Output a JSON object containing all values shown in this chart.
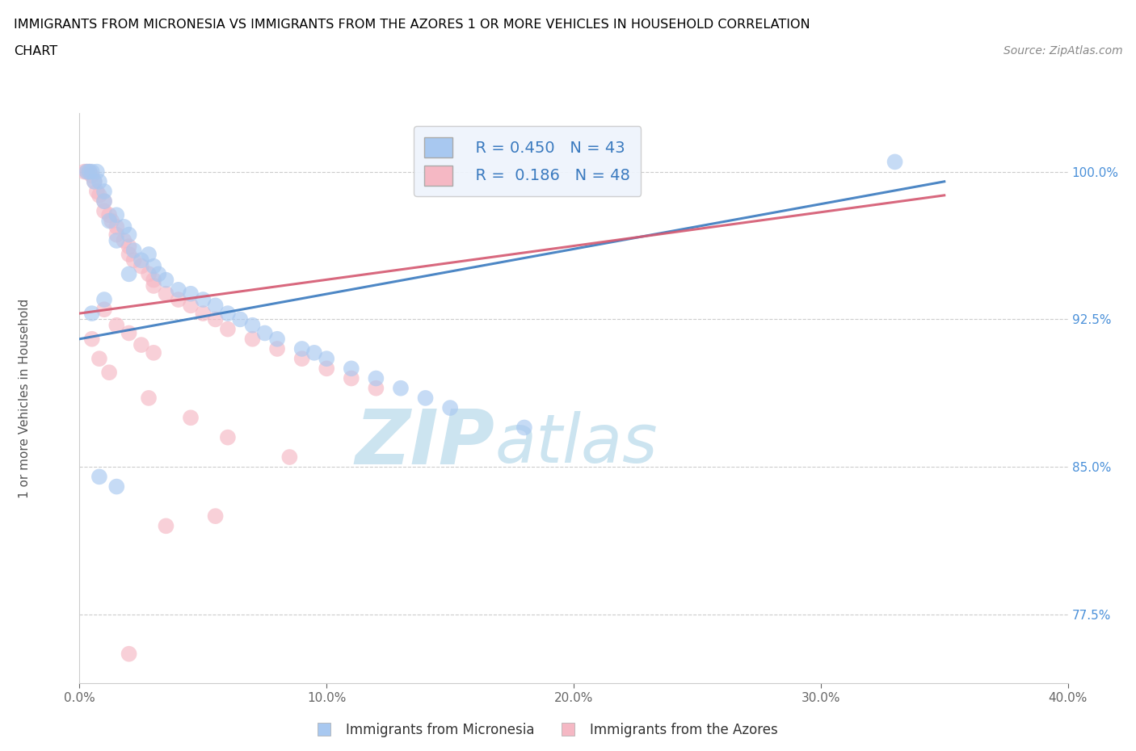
{
  "title_line1": "IMMIGRANTS FROM MICRONESIA VS IMMIGRANTS FROM THE AZORES 1 OR MORE VEHICLES IN HOUSEHOLD CORRELATION",
  "title_line2": "CHART",
  "source_text": "Source: ZipAtlas.com",
  "ylabel": "1 or more Vehicles in Household",
  "xlim": [
    0.0,
    40.0
  ],
  "ylim": [
    74.0,
    103.0
  ],
  "xticks": [
    0.0,
    10.0,
    20.0,
    30.0,
    40.0
  ],
  "xticklabels": [
    "0.0%",
    "10.0%",
    "20.0%",
    "30.0%",
    "40.0%"
  ],
  "yticks": [
    77.5,
    85.0,
    92.5,
    100.0
  ],
  "yticklabels": [
    "77.5%",
    "85.0%",
    "92.5%",
    "100.0%"
  ],
  "hlines": [
    100.0,
    92.5,
    85.0,
    77.5
  ],
  "blue_color": "#a8c8f0",
  "pink_color": "#f5b8c4",
  "trendline_blue": "#3a7abf",
  "trendline_pink": "#d45870",
  "watermark_color": "#cce4f0",
  "R_blue": 0.45,
  "N_blue": 43,
  "R_pink": 0.186,
  "N_pink": 48,
  "blue_scatter_x": [
    0.3,
    0.4,
    0.5,
    0.6,
    0.7,
    0.8,
    1.0,
    1.0,
    1.2,
    1.5,
    1.5,
    1.8,
    2.0,
    2.2,
    2.5,
    2.8,
    3.0,
    3.2,
    3.5,
    4.0,
    4.5,
    5.0,
    5.5,
    6.0,
    6.5,
    7.0,
    7.5,
    8.0,
    9.0,
    9.5,
    10.0,
    11.0,
    12.0,
    13.0,
    14.0,
    15.0,
    18.0,
    0.5,
    1.0,
    2.0,
    0.8,
    1.5,
    33.0
  ],
  "blue_scatter_y": [
    100.0,
    100.0,
    100.0,
    99.5,
    100.0,
    99.5,
    99.0,
    98.5,
    97.5,
    97.8,
    96.5,
    97.2,
    96.8,
    96.0,
    95.5,
    95.8,
    95.2,
    94.8,
    94.5,
    94.0,
    93.8,
    93.5,
    93.2,
    92.8,
    92.5,
    92.2,
    91.8,
    91.5,
    91.0,
    90.8,
    90.5,
    90.0,
    89.5,
    89.0,
    88.5,
    88.0,
    87.0,
    92.8,
    93.5,
    94.8,
    84.5,
    84.0,
    100.5
  ],
  "pink_scatter_x": [
    0.2,
    0.3,
    0.4,
    0.5,
    0.6,
    0.7,
    0.8,
    1.0,
    1.0,
    1.2,
    1.3,
    1.5,
    1.5,
    1.8,
    2.0,
    2.0,
    2.2,
    2.5,
    2.8,
    3.0,
    3.0,
    3.5,
    4.0,
    4.5,
    5.0,
    5.5,
    6.0,
    7.0,
    8.0,
    9.0,
    10.0,
    11.0,
    12.0,
    1.0,
    1.5,
    2.0,
    2.5,
    3.0,
    0.5,
    0.8,
    1.2,
    2.8,
    4.5,
    6.0,
    8.5,
    3.5,
    5.5,
    2.0
  ],
  "pink_scatter_y": [
    100.0,
    100.0,
    100.0,
    99.8,
    99.5,
    99.0,
    98.8,
    98.5,
    98.0,
    97.8,
    97.5,
    97.2,
    96.8,
    96.5,
    96.2,
    95.8,
    95.5,
    95.2,
    94.8,
    94.5,
    94.2,
    93.8,
    93.5,
    93.2,
    92.8,
    92.5,
    92.0,
    91.5,
    91.0,
    90.5,
    90.0,
    89.5,
    89.0,
    93.0,
    92.2,
    91.8,
    91.2,
    90.8,
    91.5,
    90.5,
    89.8,
    88.5,
    87.5,
    86.5,
    85.5,
    82.0,
    82.5,
    75.5
  ],
  "blue_trendline": [
    0.0,
    35.0,
    91.5,
    99.5
  ],
  "pink_trendline": [
    0.0,
    35.0,
    92.8,
    98.8
  ],
  "legend_label_blue": "Immigrants from Micronesia",
  "legend_label_pink": "Immigrants from the Azores",
  "bg_color": "#ffffff",
  "title_color": "#000000",
  "axis_label_color": "#555555",
  "tick_color": "#666666",
  "ytick_color": "#4a90d9",
  "grid_color": "#cccccc"
}
